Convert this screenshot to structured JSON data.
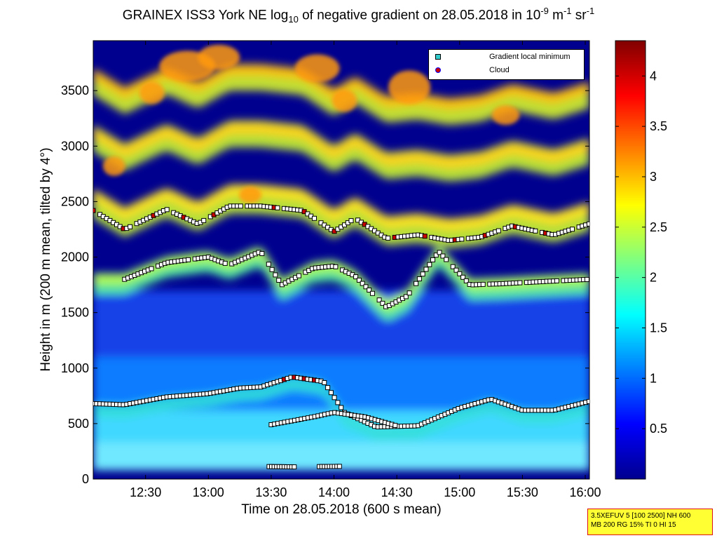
{
  "title": {
    "prefix": "GRAINEX ISS3 York NE log",
    "sub": "10",
    "middle": " of negative gradient on 28.05.2018 in 10",
    "sup1": "-9",
    "unit1": " m",
    "sup2": "-1",
    "unit2": " sr",
    "sup3": "-1"
  },
  "info_box": {
    "line1": "3.5XEFUV 5 [100 2500] NH 600",
    "line2": "MB 200 RG 15% TI 0 HI 15"
  },
  "colors": {
    "background": "#00008f",
    "marker_fill": "#ffffff",
    "cloud_fill": "#cc0000",
    "gradient_min_marker": "#33cccc",
    "colormap": "jet"
  },
  "chart_data": {
    "type": "heatmap",
    "colormap": "jet",
    "xlabel": "Time on 28.05.2018 (600 s mean)",
    "ylabel": "Height in m (200 m mean, tilted by 4°)",
    "xlim": [
      "12:05",
      "16:02"
    ],
    "ylim": [
      0,
      3950
    ],
    "x_ticks": [
      "12:30",
      "13:00",
      "13:30",
      "14:00",
      "14:30",
      "15:00",
      "15:30",
      "16:00"
    ],
    "y_ticks": [
      0,
      500,
      1000,
      1500,
      2000,
      2500,
      3000,
      3500
    ],
    "colorbar": {
      "min": 0,
      "max": 4.35,
      "ticks": [
        0.5,
        1,
        1.5,
        2,
        2.5,
        3,
        3.5,
        4
      ],
      "tick_labels": [
        "0.5",
        "1",
        "1.5",
        "2",
        "2.5",
        "3",
        "3.5",
        "4"
      ]
    },
    "legend": {
      "position": "top-right",
      "entries": [
        {
          "label": "Gradient local minimum",
          "marker": "square",
          "color": "#33cccc"
        },
        {
          "label": "Cloud",
          "marker": "circle",
          "color": "#cc0000"
        }
      ]
    },
    "layers": [
      {
        "name": "surface layer",
        "time": [
          "12:05",
          "13:00",
          "13:40",
          "14:30",
          "15:30",
          "16:02"
        ],
        "height": [
          120,
          120,
          110,
          120,
          130,
          130
        ]
      },
      {
        "name": "lower boundary",
        "time": [
          "12:05",
          "12:20",
          "12:40",
          "13:00",
          "13:15",
          "13:25",
          "13:40",
          "13:55",
          "14:05",
          "14:20",
          "14:40",
          "15:00",
          "15:15",
          "15:30",
          "15:45",
          "16:02"
        ],
        "height": [
          680,
          670,
          740,
          770,
          820,
          830,
          920,
          880,
          600,
          470,
          480,
          640,
          720,
          620,
          620,
          700
        ]
      },
      {
        "name": "internal layer",
        "time": [
          "13:30",
          "13:50",
          "14:00",
          "14:15",
          "14:30"
        ],
        "height": [
          490,
          560,
          600,
          560,
          480
        ]
      },
      {
        "name": "mid layer",
        "time": [
          "12:20",
          "12:40",
          "13:00",
          "13:10",
          "13:25",
          "13:35",
          "13:50",
          "14:00",
          "14:10",
          "14:25",
          "14:35",
          "14:50",
          "15:05",
          "15:20",
          "15:40",
          "16:02"
        ],
        "height": [
          1800,
          1950,
          2000,
          1930,
          2050,
          1750,
          1900,
          1920,
          1830,
          1550,
          1650,
          2050,
          1750,
          1760,
          1780,
          1800
        ]
      },
      {
        "name": "upper layer",
        "time": [
          "12:05",
          "12:20",
          "12:40",
          "12:55",
          "13:10",
          "13:25",
          "13:45",
          "14:00",
          "14:10",
          "14:25",
          "14:40",
          "14:55",
          "15:10",
          "15:25",
          "15:45",
          "16:02"
        ],
        "height": [
          2420,
          2250,
          2430,
          2300,
          2460,
          2460,
          2420,
          2230,
          2350,
          2170,
          2200,
          2150,
          2180,
          2280,
          2200,
          2300
        ]
      }
    ]
  }
}
